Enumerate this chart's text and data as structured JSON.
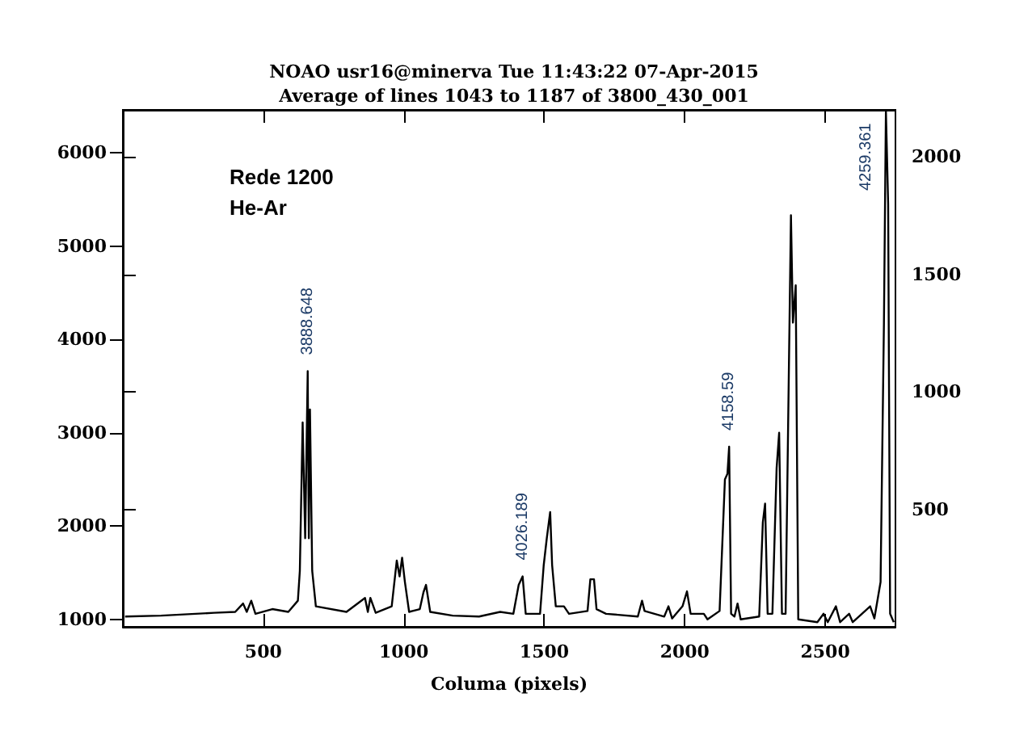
{
  "chart_data": {
    "type": "line",
    "title": "NOAO usr16@minerva Tue 11:43:22 07-Apr-2015",
    "subtitle": "Average of lines 1043 to 1187 of 3800_430_001",
    "xlabel": "Columa (pixels)",
    "xlim": [
      0,
      2750
    ],
    "xticks": [
      500,
      1000,
      1500,
      2000,
      2500
    ],
    "ylim": [
      920,
      6460
    ],
    "yticks": [
      1000,
      2000,
      3000,
      4000,
      5000,
      6000
    ],
    "y2lim": [
      0,
      2200
    ],
    "y2ticks": [
      500,
      1000,
      1500,
      2000
    ],
    "grid": false,
    "marker": "none",
    "line_style": "solid",
    "annotations": [
      "Rede 1200",
      "He-Ar",
      {
        "text": "3888.648",
        "x": 658,
        "y": 3660
      },
      {
        "text": "4026.189",
        "x": 1423,
        "y": 1460
      },
      {
        "text": "4158.59",
        "x": 2158,
        "y": 2850
      },
      {
        "text": "4259.361",
        "x": 2716,
        "y": 6450
      }
    ],
    "series": [
      {
        "color": "#000000",
        "x": [
          8,
          136,
          325,
          400,
          428,
          441,
          457,
          472,
          532,
          589,
          623,
          630,
          640,
          649,
          658,
          662,
          666,
          674,
          687,
          796,
          862,
          872,
          881,
          900,
          957,
          975,
          985,
          994,
          1004,
          1019,
          1057,
          1070,
          1079,
          1094,
          1174,
          1268,
          1343,
          1390,
          1409,
          1423,
          1434,
          1485,
          1498,
          1509,
          1521,
          1528,
          1541,
          1570,
          1588,
          1654,
          1664,
          1677,
          1686,
          1720,
          1833,
          1848,
          1857,
          1927,
          1942,
          1955,
          1992,
          2008,
          2021,
          2068,
          2081,
          2124,
          2143,
          2152,
          2158,
          2165,
          2177,
          2188,
          2199,
          2265,
          2278,
          2286,
          2295,
          2312,
          2327,
          2336,
          2346,
          2359,
          2368,
          2378,
          2385,
          2395,
          2404,
          2472,
          2494,
          2509,
          2538,
          2553,
          2585,
          2598,
          2660,
          2675,
          2697,
          2709,
          2716,
          2724,
          2731,
          2744
        ],
        "values": [
          1030,
          1040,
          1070,
          1080,
          1170,
          1080,
          1200,
          1060,
          1110,
          1080,
          1200,
          1520,
          3110,
          1870,
          3660,
          1870,
          3250,
          1520,
          1140,
          1080,
          1230,
          1080,
          1230,
          1070,
          1140,
          1630,
          1460,
          1660,
          1400,
          1080,
          1110,
          1290,
          1370,
          1080,
          1040,
          1030,
          1080,
          1060,
          1370,
          1460,
          1060,
          1060,
          1580,
          1870,
          2150,
          1580,
          1140,
          1140,
          1060,
          1090,
          1430,
          1430,
          1110,
          1060,
          1030,
          1200,
          1090,
          1030,
          1140,
          1010,
          1140,
          1300,
          1060,
          1060,
          1000,
          1090,
          2500,
          2560,
          2850,
          1060,
          1030,
          1170,
          1000,
          1030,
          2040,
          2240,
          1060,
          1060,
          2620,
          3000,
          1060,
          1060,
          3080,
          5330,
          4180,
          4580,
          1000,
          970,
          1060,
          970,
          1140,
          970,
          1060,
          970,
          1140,
          1010,
          1400,
          4180,
          6450,
          5450,
          1060,
          970
        ]
      }
    ]
  }
}
